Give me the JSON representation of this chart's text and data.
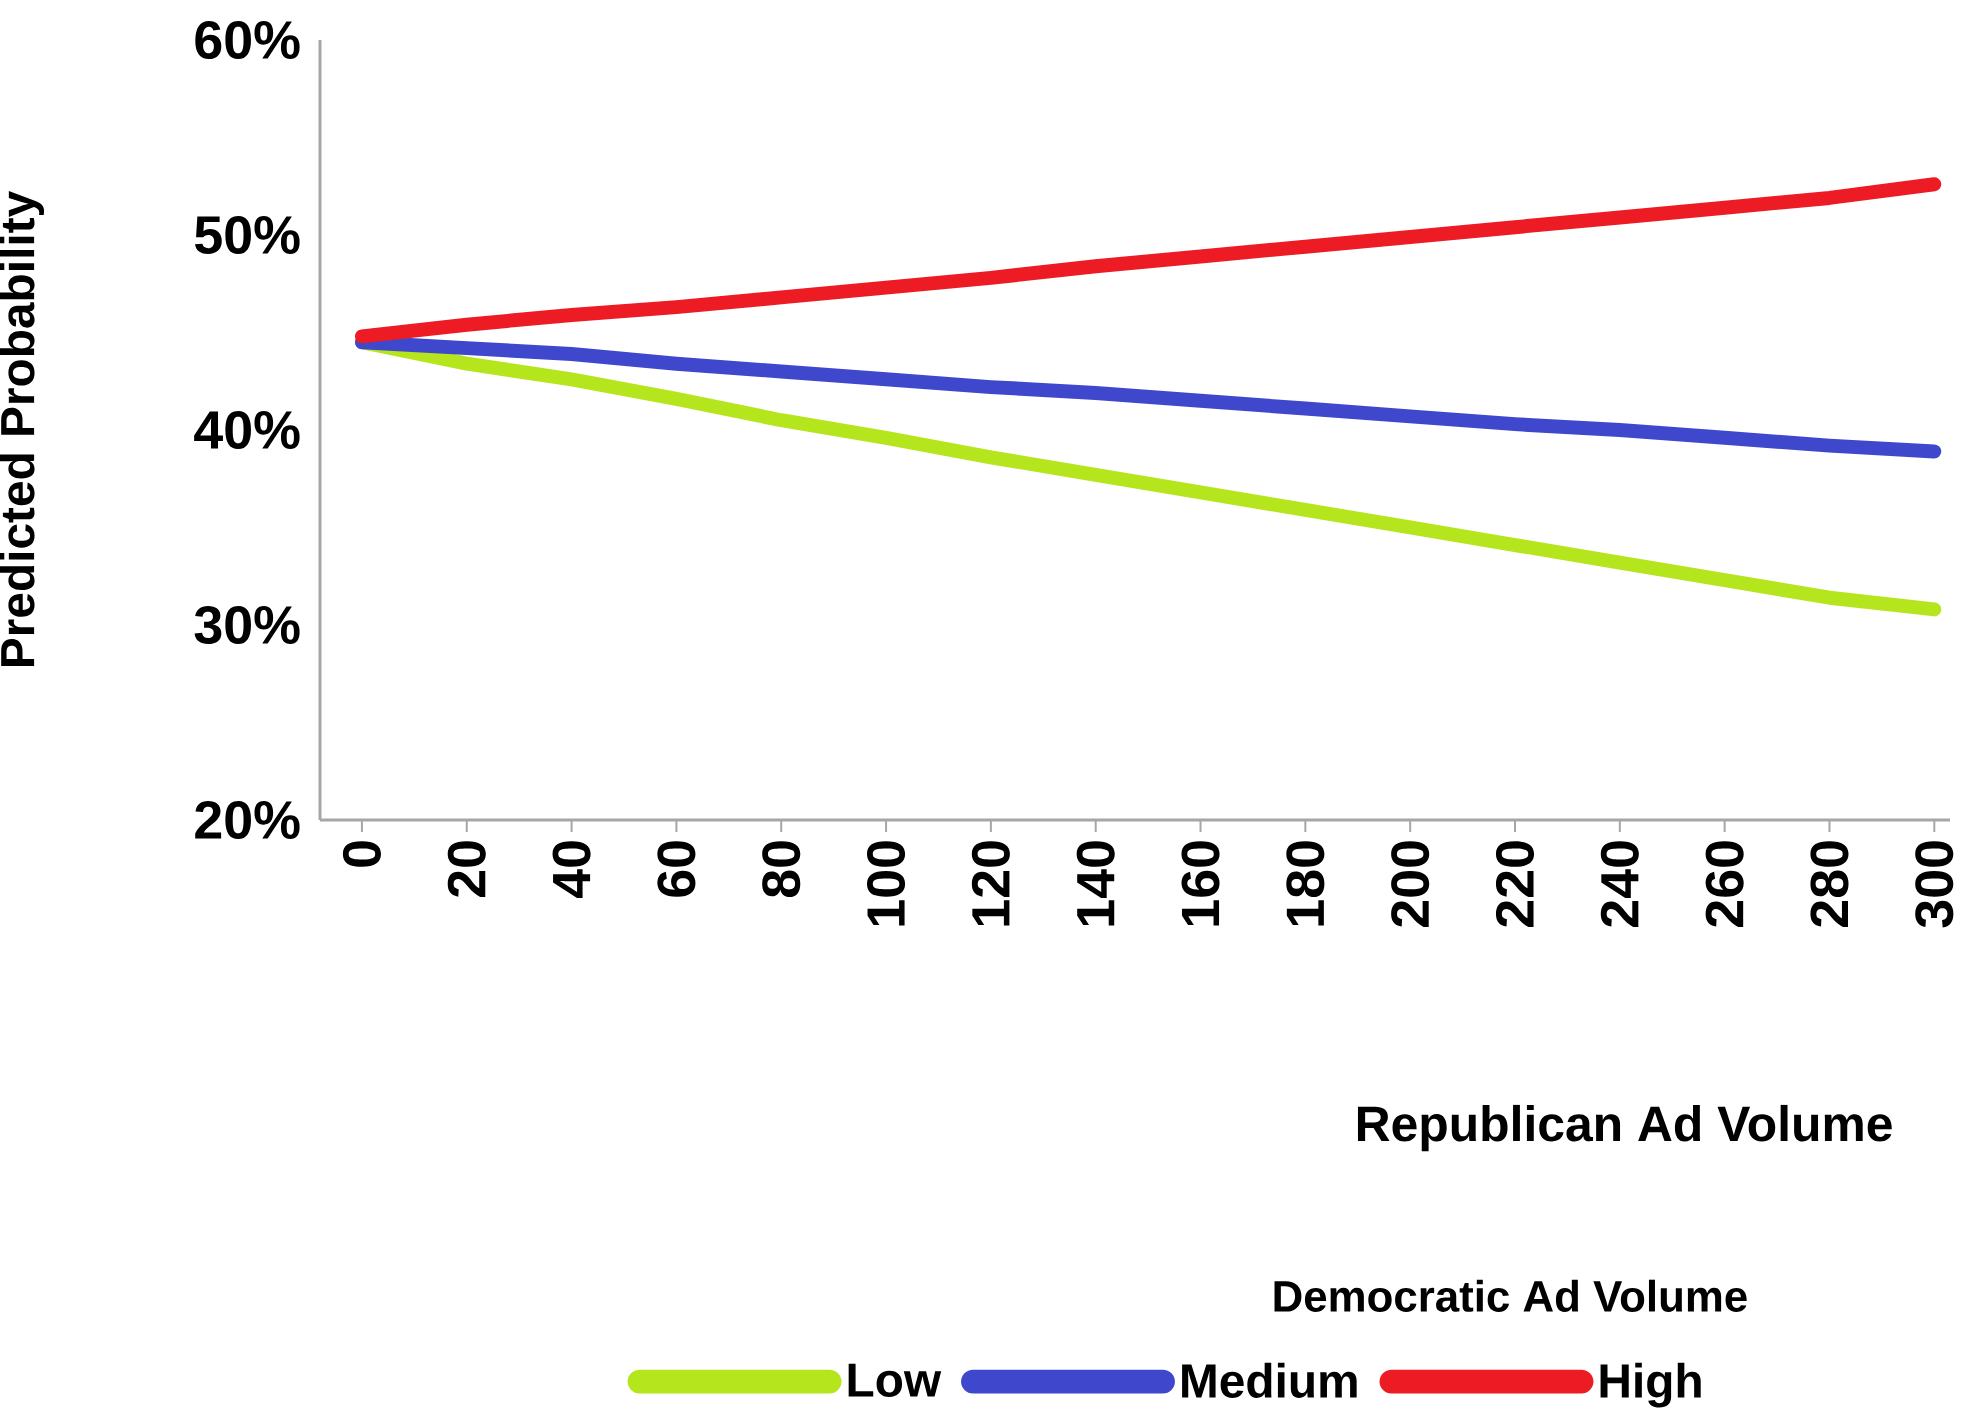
{
  "chart_data": {
    "type": "line",
    "xlabel": "Republican Ad Volume",
    "ylabel": "Predicted Probability",
    "legend_title": "Democratic Ad Volume",
    "legend": "bottom",
    "x": [
      0,
      20,
      40,
      60,
      80,
      100,
      120,
      140,
      160,
      180,
      200,
      220,
      240,
      260,
      280,
      300
    ],
    "series": [
      {
        "name": "Low",
        "color": "#b5e61d",
        "values": [
          44.5,
          43.4,
          42.6,
          41.6,
          40.5,
          39.6,
          38.6,
          37.7,
          36.8,
          35.9,
          35.0,
          34.1,
          33.2,
          32.3,
          31.4,
          30.8
        ]
      },
      {
        "name": "Medium",
        "color": "#3f48cc",
        "values": [
          44.5,
          44.2,
          43.9,
          43.4,
          43.0,
          42.6,
          42.2,
          41.9,
          41.5,
          41.1,
          40.7,
          40.3,
          40.0,
          39.6,
          39.2,
          38.9
        ]
      },
      {
        "name": "High",
        "color": "#ed1c24",
        "values": [
          44.8,
          45.4,
          45.9,
          46.3,
          46.8,
          47.3,
          47.8,
          48.4,
          48.9,
          49.4,
          49.9,
          50.4,
          50.9,
          51.4,
          51.9,
          52.6
        ]
      }
    ],
    "xlim": [
      -8,
      303
    ],
    "ylim": [
      20,
      60
    ],
    "xticks": [
      0,
      20,
      40,
      60,
      80,
      100,
      120,
      140,
      160,
      180,
      200,
      220,
      240,
      260,
      280,
      300
    ],
    "yticks": [
      {
        "value": 20,
        "label": "20%"
      },
      {
        "value": 30,
        "label": "30%"
      },
      {
        "value": 40,
        "label": "40%"
      },
      {
        "value": 50,
        "label": "50%"
      },
      {
        "value": 60,
        "label": "60%"
      }
    ]
  }
}
